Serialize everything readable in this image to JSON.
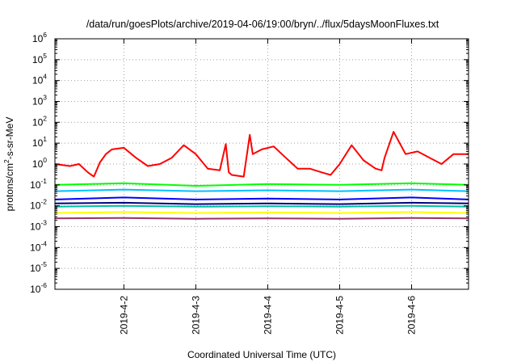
{
  "chart_data": {
    "type": "line",
    "title": "/data/run/goesPlots/archive/2019-04-06/19:00/bryn/../flux/5daysMoonFluxes.txt",
    "xlabel": "Coordinated Universal Time (UTC)",
    "ylabel_parts": [
      "protons/cm",
      "2",
      "-s-sr-MeV"
    ],
    "yscale": "log",
    "ylim": [
      1e-06,
      1000000.0
    ],
    "xlim": [
      "2019-04-01T01:00",
      "2019-04-06T19:00"
    ],
    "grid": true,
    "legend": "none",
    "x_ticks": [
      "2019-4-2",
      "2019-4-3",
      "2019-4-4",
      "2019-4-5",
      "2019-4-6"
    ],
    "y_ticks": [
      {
        "base": "10",
        "exp": "-6"
      },
      {
        "base": "10",
        "exp": "-5"
      },
      {
        "base": "10",
        "exp": "-4"
      },
      {
        "base": "10",
        "exp": "-3"
      },
      {
        "base": "10",
        "exp": "-2"
      },
      {
        "base": "10",
        "exp": "-1"
      },
      {
        "base": "10",
        "exp": "0"
      },
      {
        "base": "10",
        "exp": "1"
      },
      {
        "base": "10",
        "exp": "2"
      },
      {
        "base": "10",
        "exp": "3"
      },
      {
        "base": "10",
        "exp": "4"
      },
      {
        "base": "10",
        "exp": "5"
      },
      {
        "base": "10",
        "exp": "6"
      }
    ],
    "series": [
      {
        "color": "#ff0000",
        "x": [
          "2019-04-01T01:00",
          "2019-04-01T06:00",
          "2019-04-01T09:00",
          "2019-04-01T12:00",
          "2019-04-01T14:00",
          "2019-04-01T16:00",
          "2019-04-01T18:00",
          "2019-04-01T20:00",
          "2019-04-02T00:00",
          "2019-04-02T04:00",
          "2019-04-02T08:00",
          "2019-04-02T12:00",
          "2019-04-02T16:00",
          "2019-04-02T20:00",
          "2019-04-03T00:00",
          "2019-04-03T04:00",
          "2019-04-03T08:00",
          "2019-04-03T10:00",
          "2019-04-03T11:00",
          "2019-04-03T12:00",
          "2019-04-03T16:00",
          "2019-04-03T18:00",
          "2019-04-03T19:00",
          "2019-04-03T22:00",
          "2019-04-04T02:00",
          "2019-04-04T06:00",
          "2019-04-04T10:00",
          "2019-04-04T14:00",
          "2019-04-04T18:00",
          "2019-04-04T21:00",
          "2019-04-05T00:00",
          "2019-04-05T04:00",
          "2019-04-05T08:00",
          "2019-04-05T12:00",
          "2019-04-05T14:00",
          "2019-04-05T15:00",
          "2019-04-05T18:00",
          "2019-04-05T22:00",
          "2019-04-06T02:00",
          "2019-04-06T06:00",
          "2019-04-06T10:00",
          "2019-04-06T14:00",
          "2019-04-06T19:00"
        ],
        "y": [
          1.0,
          0.8,
          1.0,
          0.4,
          0.25,
          1.2,
          3.0,
          5.0,
          6.0,
          2.0,
          0.8,
          1.0,
          2.0,
          8.0,
          3.0,
          0.6,
          0.5,
          9.0,
          0.4,
          0.3,
          0.25,
          25,
          3.0,
          5.0,
          7.0,
          2.0,
          0.6,
          0.6,
          0.4,
          0.3,
          1.0,
          8.0,
          1.5,
          0.6,
          0.5,
          2.0,
          35,
          3.0,
          4.0,
          2.0,
          1.0,
          3.0,
          3.0
        ]
      },
      {
        "color": "#00ff00",
        "x": [
          "2019-04-01T01:00",
          "2019-04-02T00:00",
          "2019-04-03T00:00",
          "2019-04-04T00:00",
          "2019-04-05T00:00",
          "2019-04-06T00:00",
          "2019-04-06T19:00"
        ],
        "y": [
          0.1,
          0.12,
          0.09,
          0.11,
          0.1,
          0.12,
          0.1
        ]
      },
      {
        "color": "#00bfff",
        "x": [
          "2019-04-01T01:00",
          "2019-04-02T00:00",
          "2019-04-03T00:00",
          "2019-04-04T00:00",
          "2019-04-05T00:00",
          "2019-04-06T00:00",
          "2019-04-06T19:00"
        ],
        "y": [
          0.05,
          0.06,
          0.05,
          0.055,
          0.05,
          0.06,
          0.05
        ]
      },
      {
        "color": "#0000ff",
        "x": [
          "2019-04-01T01:00",
          "2019-04-02T00:00",
          "2019-04-03T00:00",
          "2019-04-04T00:00",
          "2019-04-05T00:00",
          "2019-04-06T00:00",
          "2019-04-06T19:00"
        ],
        "y": [
          0.02,
          0.025,
          0.02,
          0.022,
          0.02,
          0.025,
          0.02
        ]
      },
      {
        "color": "#000080",
        "x": [
          "2019-04-01T01:00",
          "2019-04-02T00:00",
          "2019-04-03T00:00",
          "2019-04-04T00:00",
          "2019-04-05T00:00",
          "2019-04-06T00:00",
          "2019-04-06T19:00"
        ],
        "y": [
          0.013,
          0.014,
          0.012,
          0.013,
          0.012,
          0.014,
          0.013
        ]
      },
      {
        "color": "#00c0a0",
        "x": [
          "2019-04-01T01:00",
          "2019-04-02T00:00",
          "2019-04-03T00:00",
          "2019-04-04T00:00",
          "2019-04-05T00:00",
          "2019-04-06T00:00",
          "2019-04-06T19:00"
        ],
        "y": [
          0.009,
          0.01,
          0.009,
          0.0095,
          0.009,
          0.01,
          0.009
        ]
      },
      {
        "color": "#ffff00",
        "x": [
          "2019-04-01T01:00",
          "2019-04-02T00:00",
          "2019-04-03T00:00",
          "2019-04-04T00:00",
          "2019-04-05T00:00",
          "2019-04-06T00:00",
          "2019-04-06T19:00"
        ],
        "y": [
          0.0045,
          0.005,
          0.0045,
          0.0048,
          0.0045,
          0.005,
          0.0045
        ]
      },
      {
        "color": "#993366",
        "x": [
          "2019-04-01T01:00",
          "2019-04-02T00:00",
          "2019-04-03T00:00",
          "2019-04-04T00:00",
          "2019-04-05T00:00",
          "2019-04-06T00:00",
          "2019-04-06T19:00"
        ],
        "y": [
          0.0025,
          0.0026,
          0.0024,
          0.0025,
          0.0024,
          0.0026,
          0.0025
        ]
      }
    ]
  }
}
